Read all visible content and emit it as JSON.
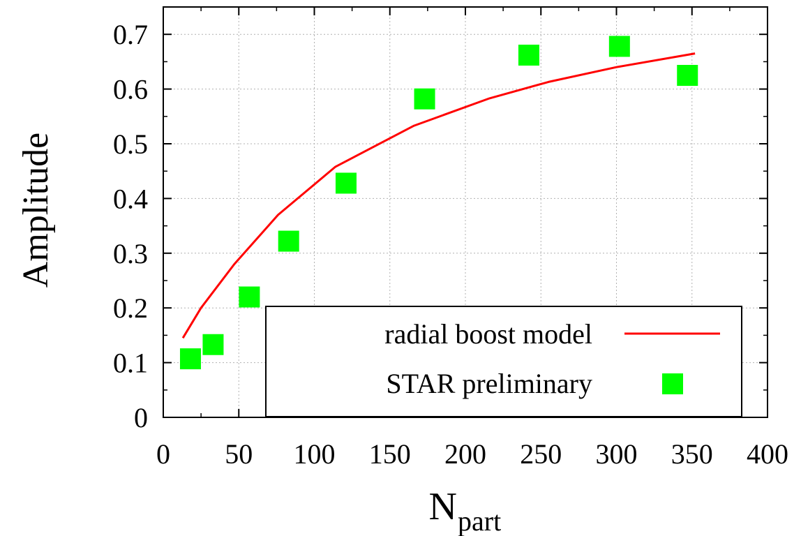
{
  "chart_data": {
    "type": "line",
    "xlabel": "N",
    "xlabel_subscript": "part",
    "ylabel": "Amplitude",
    "xlim": [
      0,
      400
    ],
    "ylim": [
      0,
      0.75
    ],
    "x_ticks": [
      0,
      50,
      100,
      150,
      200,
      250,
      300,
      350,
      400
    ],
    "x_tick_labels": [
      "0",
      "50",
      "100",
      "150",
      "200",
      "250",
      "300",
      "350",
      "400"
    ],
    "y_ticks": [
      0,
      0.1,
      0.2,
      0.3,
      0.4,
      0.5,
      0.6,
      0.7
    ],
    "y_tick_labels": [
      "0",
      "0.1",
      "0.2",
      "0.3",
      "0.4",
      "0.5",
      "0.6",
      "0.7"
    ],
    "grid": true,
    "legend_position": "bottom-right",
    "series": [
      {
        "name": "radial boost model",
        "kind": "line",
        "color": "#ff0000",
        "x": [
          13,
          25,
          47,
          76,
          114,
          166,
          216,
          255,
          300,
          352
        ],
        "y": [
          0.145,
          0.2,
          0.28,
          0.37,
          0.458,
          0.533,
          0.583,
          0.613,
          0.64,
          0.665
        ]
      },
      {
        "name": "STAR preliminary",
        "kind": "scatter",
        "marker": "square",
        "color": "#00ff00",
        "x": [
          18,
          33,
          57,
          83,
          121,
          173,
          242,
          302,
          347
        ],
        "y": [
          0.107,
          0.133,
          0.22,
          0.322,
          0.428,
          0.582,
          0.662,
          0.678,
          0.625
        ]
      }
    ]
  }
}
